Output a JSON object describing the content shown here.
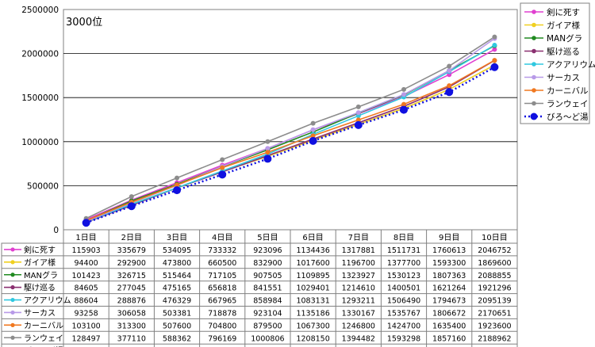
{
  "chart_data": {
    "type": "line",
    "title": "3000位",
    "categories": [
      "1日目",
      "2日目",
      "3日目",
      "4日目",
      "5日目",
      "6日目",
      "7日目",
      "8日目",
      "9日目",
      "10日目"
    ],
    "ylim": [
      0,
      2500000
    ],
    "yticks": [
      "0",
      "500000",
      "1000000",
      "1500000",
      "2000000",
      "2500000"
    ],
    "grid": true,
    "legend_position": "right",
    "data_table": true,
    "series": [
      {
        "name": "剣に死す",
        "color": "#e040d0",
        "dotted": false,
        "values": [
          115903,
          335679,
          534095,
          733332,
          923096,
          1134436,
          1317881,
          1511731,
          1760613,
          2046752
        ]
      },
      {
        "name": "ガイア様",
        "color": "#f0d020",
        "dotted": false,
        "values": [
          94400,
          292900,
          473800,
          660500,
          832900,
          1017600,
          1196700,
          1377700,
          1593300,
          1869600
        ]
      },
      {
        "name": "MANグラ",
        "color": "#208a20",
        "dotted": false,
        "values": [
          101423,
          326715,
          515464,
          717105,
          907505,
          1109895,
          1323927,
          1530123,
          1807363,
          2088855
        ]
      },
      {
        "name": "駆け巡る",
        "color": "#8a3070",
        "dotted": false,
        "values": [
          84605,
          277045,
          475165,
          656818,
          841551,
          1029401,
          1214610,
          1400501,
          1621264,
          1921296
        ]
      },
      {
        "name": "アクアリウム",
        "color": "#30c8e0",
        "dotted": false,
        "values": [
          88604,
          288876,
          476329,
          667965,
          858984,
          1083131,
          1293211,
          1506490,
          1794673,
          2095139
        ]
      },
      {
        "name": "サーカス",
        "color": "#b89ae8",
        "dotted": false,
        "values": [
          93258,
          306058,
          503381,
          718878,
          923104,
          1135186,
          1330167,
          1535767,
          1806672,
          2170651
        ]
      },
      {
        "name": "カーニバル",
        "color": "#f07820",
        "dotted": false,
        "values": [
          103100,
          313300,
          507600,
          704800,
          879500,
          1067300,
          1246800,
          1424700,
          1635400,
          1923600
        ]
      },
      {
        "name": "ランウェイ",
        "color": "#8c8c8c",
        "dotted": false,
        "values": [
          128497,
          377110,
          588362,
          796169,
          1000806,
          1208150,
          1394482,
          1593298,
          1857160,
          2188962
        ]
      },
      {
        "name": "びろ〜ど湯",
        "color": "#1010e0",
        "dotted": true,
        "values": [
          78900,
          267900,
          448500,
          626600,
          805500,
          1008600,
          1188100,
          1361300,
          1562400,
          1845600
        ]
      }
    ]
  }
}
